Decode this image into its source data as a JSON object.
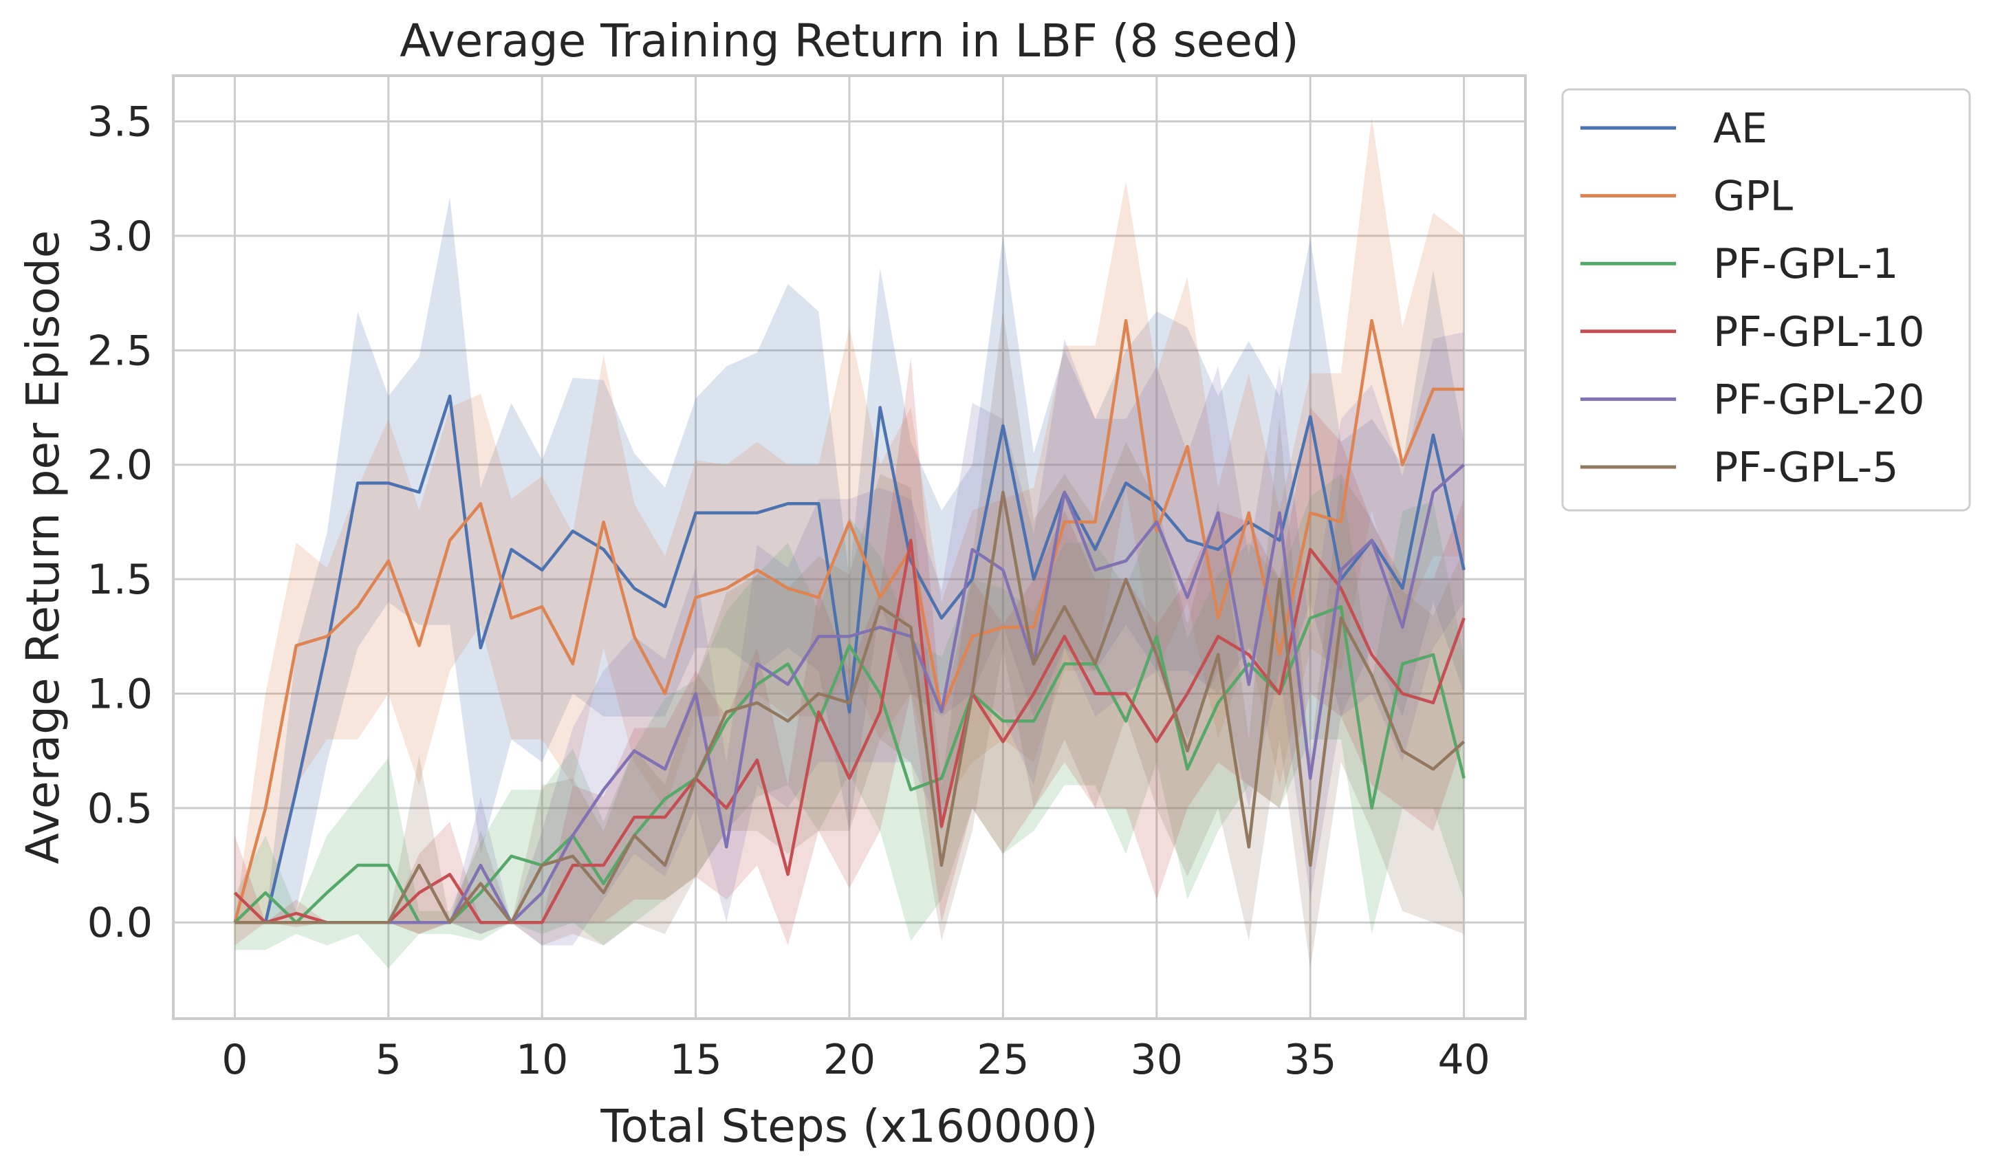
{
  "chart_data": {
    "type": "line",
    "title": "Average Training Return in LBF (8 seed)",
    "xlabel": "Total Steps (x160000)",
    "ylabel": "Average Return per Episode",
    "xlim": [
      -2,
      42
    ],
    "ylim": [
      -0.42,
      3.7
    ],
    "xticks": [
      "0",
      "5",
      "10",
      "15",
      "20",
      "25",
      "30",
      "35",
      "40"
    ],
    "yticks": [
      "0.0",
      "0.5",
      "1.0",
      "1.5",
      "2.0",
      "2.5",
      "3.0",
      "3.5"
    ],
    "grid": true,
    "legend_position": "outside-top-right",
    "x": [
      0,
      1,
      2,
      3,
      4,
      5,
      6,
      7,
      8,
      9,
      10,
      11,
      12,
      13,
      14,
      15,
      16,
      17,
      18,
      19,
      20,
      21,
      22,
      23,
      24,
      25,
      26,
      27,
      28,
      29,
      30,
      31,
      32,
      33,
      34,
      35,
      36,
      37,
      38,
      39,
      40
    ],
    "series": [
      {
        "name": "AE",
        "color": "#4c72b0",
        "values": [
          0.0,
          0.0,
          0.58,
          1.2,
          1.92,
          1.92,
          1.88,
          2.3,
          1.2,
          1.63,
          1.54,
          1.71,
          1.63,
          1.46,
          1.38,
          1.79,
          1.79,
          1.79,
          1.83,
          1.83,
          0.92,
          2.25,
          1.58,
          1.33,
          1.5,
          2.17,
          1.5,
          1.88,
          1.63,
          1.92,
          1.83,
          1.67,
          1.63,
          1.75,
          1.67,
          2.21,
          1.5,
          1.67,
          1.46,
          2.13,
          1.54
        ],
        "lower": [
          0.0,
          0.0,
          0.05,
          0.7,
          1.2,
          1.4,
          1.3,
          1.3,
          0.3,
          0.8,
          0.7,
          1.0,
          0.9,
          0.9,
          0.9,
          1.2,
          1.2,
          1.1,
          1.2,
          1.1,
          0.4,
          1.4,
          1.0,
          0.9,
          1.0,
          1.3,
          0.9,
          1.2,
          1.1,
          1.3,
          1.1,
          1.1,
          1.0,
          1.2,
          1.0,
          1.4,
          0.9,
          1.2,
          0.9,
          1.4,
          1.0
        ],
        "upper": [
          0.0,
          0.0,
          1.2,
          1.7,
          2.67,
          2.3,
          2.47,
          3.17,
          1.9,
          2.27,
          2.02,
          2.38,
          2.37,
          2.05,
          1.9,
          2.29,
          2.43,
          2.49,
          2.79,
          2.67,
          1.5,
          2.86,
          2.1,
          1.8,
          2.0,
          3.0,
          2.05,
          2.5,
          2.2,
          2.5,
          2.67,
          2.6,
          2.3,
          2.54,
          2.3,
          2.99,
          2.1,
          2.2,
          2.0,
          2.85,
          2.1
        ]
      },
      {
        "name": "GPL",
        "color": "#dd8452",
        "values": [
          0.0,
          0.5,
          1.21,
          1.25,
          1.38,
          1.58,
          1.21,
          1.67,
          1.83,
          1.33,
          1.38,
          1.13,
          1.75,
          1.25,
          1.0,
          1.42,
          1.46,
          1.54,
          1.46,
          1.42,
          1.75,
          1.42,
          1.63,
          0.92,
          1.25,
          1.29,
          1.29,
          1.75,
          1.75,
          2.63,
          1.71,
          2.08,
          1.33,
          1.79,
          1.17,
          1.79,
          1.75,
          2.63,
          2.0,
          2.33,
          2.33
        ],
        "lower": [
          0.0,
          0.0,
          0.6,
          0.8,
          0.8,
          1.0,
          0.6,
          1.1,
          1.3,
          0.8,
          0.8,
          0.6,
          1.2,
          0.7,
          0.5,
          0.9,
          0.9,
          1.0,
          0.9,
          0.9,
          1.1,
          0.8,
          1.0,
          0.5,
          0.7,
          0.8,
          0.7,
          1.1,
          1.1,
          1.9,
          1.1,
          1.4,
          0.8,
          1.2,
          0.6,
          1.2,
          1.1,
          1.8,
          1.3,
          1.6,
          1.6
        ],
        "upper": [
          0.0,
          1.0,
          1.66,
          1.55,
          1.9,
          2.2,
          1.8,
          2.25,
          2.31,
          1.85,
          1.95,
          1.7,
          2.48,
          1.83,
          1.6,
          2.02,
          2.0,
          2.1,
          2.0,
          2.0,
          2.6,
          2.0,
          2.25,
          1.4,
          1.8,
          1.85,
          1.9,
          2.52,
          2.52,
          3.24,
          2.4,
          2.82,
          1.9,
          2.4,
          1.8,
          2.4,
          2.4,
          3.52,
          2.6,
          3.1,
          3.0
        ]
      },
      {
        "name": "PF-GPL-1",
        "color": "#55a868",
        "values": [
          0.0,
          0.13,
          0.0,
          0.13,
          0.25,
          0.25,
          0.0,
          0.0,
          0.13,
          0.29,
          0.25,
          0.38,
          0.17,
          0.38,
          0.54,
          0.63,
          0.88,
          1.04,
          1.13,
          0.88,
          1.21,
          1.0,
          0.58,
          0.63,
          1.0,
          0.88,
          0.88,
          1.13,
          1.13,
          0.88,
          1.25,
          0.67,
          0.96,
          1.13,
          1.0,
          1.33,
          1.38,
          0.5,
          1.13,
          1.17,
          0.63
        ],
        "lower": [
          -0.12,
          -0.12,
          -0.05,
          -0.1,
          -0.05,
          -0.2,
          -0.05,
          -0.05,
          -0.08,
          0.0,
          -0.05,
          0.0,
          -0.1,
          0.0,
          0.1,
          0.2,
          0.4,
          0.55,
          0.6,
          0.4,
          0.65,
          0.4,
          -0.08,
          0.1,
          0.5,
          0.3,
          0.4,
          0.6,
          0.6,
          0.3,
          0.7,
          0.1,
          0.4,
          0.6,
          0.5,
          0.8,
          0.8,
          -0.05,
          0.5,
          0.5,
          0.1
        ],
        "upper": [
          0.12,
          0.38,
          0.05,
          0.38,
          0.55,
          0.72,
          0.05,
          0.05,
          0.35,
          0.58,
          0.58,
          0.76,
          0.44,
          0.76,
          0.98,
          1.06,
          1.36,
          1.52,
          1.66,
          1.36,
          1.77,
          1.6,
          1.24,
          1.16,
          1.5,
          1.46,
          1.36,
          1.66,
          1.66,
          1.46,
          1.8,
          1.24,
          1.52,
          1.66,
          1.5,
          1.86,
          1.96,
          1.05,
          1.8,
          1.84,
          1.16
        ]
      },
      {
        "name": "PF-GPL-10",
        "color": "#c44e52",
        "values": [
          0.13,
          0.0,
          0.04,
          0.0,
          0.0,
          0.0,
          0.13,
          0.21,
          0.0,
          0.0,
          0.0,
          0.25,
          0.25,
          0.46,
          0.46,
          0.63,
          0.5,
          0.71,
          0.21,
          0.92,
          0.63,
          0.92,
          1.67,
          0.42,
          1.0,
          0.79,
          1.0,
          1.25,
          1.0,
          1.0,
          0.79,
          1.0,
          1.25,
          1.17,
          1.0,
          1.63,
          1.46,
          1.17,
          1.0,
          0.96,
          1.33
        ],
        "lower": [
          -0.1,
          0.0,
          -0.02,
          0.0,
          0.0,
          0.0,
          -0.05,
          0.0,
          0.0,
          0.0,
          0.0,
          0.0,
          0.0,
          0.1,
          0.1,
          0.2,
          0.1,
          0.25,
          -0.1,
          0.4,
          0.15,
          0.4,
          1.0,
          0.0,
          0.5,
          0.3,
          0.5,
          0.7,
          0.5,
          0.5,
          0.1,
          0.5,
          0.7,
          0.6,
          0.5,
          1.0,
          0.9,
          0.6,
          0.5,
          0.4,
          0.8
        ],
        "upper": [
          0.38,
          0.0,
          0.1,
          0.0,
          0.0,
          0.0,
          0.3,
          0.44,
          0.0,
          0.0,
          0.0,
          0.6,
          0.55,
          0.85,
          0.85,
          1.1,
          0.9,
          1.2,
          0.6,
          1.45,
          1.1,
          1.45,
          2.47,
          0.9,
          1.5,
          1.3,
          1.5,
          1.8,
          1.5,
          1.5,
          1.3,
          1.5,
          1.8,
          1.75,
          1.5,
          2.25,
          2.1,
          1.75,
          1.5,
          1.5,
          1.85
        ]
      },
      {
        "name": "PF-GPL-20",
        "color": "#8172b3",
        "values": [
          0.0,
          0.0,
          0.0,
          0.0,
          0.0,
          0.0,
          0.0,
          0.0,
          0.25,
          0.0,
          0.13,
          0.38,
          0.58,
          0.75,
          0.67,
          1.0,
          0.33,
          1.13,
          1.04,
          1.25,
          1.25,
          1.29,
          1.25,
          0.92,
          1.63,
          1.54,
          1.13,
          1.88,
          1.54,
          1.58,
          1.75,
          1.42,
          1.79,
          1.04,
          1.79,
          0.63,
          1.54,
          1.67,
          1.29,
          1.88,
          2.0
        ],
        "lower": [
          0.0,
          0.0,
          0.0,
          0.0,
          0.0,
          0.0,
          0.0,
          0.0,
          -0.05,
          0.0,
          -0.1,
          -0.1,
          0.1,
          0.3,
          0.2,
          0.5,
          0.0,
          0.6,
          0.5,
          0.7,
          0.7,
          0.7,
          0.7,
          0.4,
          1.0,
          0.9,
          0.6,
          1.2,
          0.9,
          1.0,
          1.1,
          0.8,
          1.1,
          0.5,
          1.1,
          0.1,
          0.9,
          1.0,
          0.7,
          1.2,
          1.4
        ],
        "upper": [
          0.0,
          0.0,
          0.0,
          0.0,
          0.0,
          0.0,
          0.0,
          0.0,
          0.55,
          0.0,
          0.4,
          0.85,
          1.1,
          1.25,
          1.15,
          1.55,
          0.7,
          1.65,
          1.55,
          1.85,
          1.85,
          1.9,
          1.85,
          1.45,
          2.27,
          2.2,
          1.7,
          2.55,
          2.2,
          2.2,
          2.43,
          2.05,
          2.43,
          1.6,
          2.43,
          1.25,
          2.2,
          2.35,
          1.95,
          2.55,
          2.58
        ]
      },
      {
        "name": "PF-GPL-5",
        "color": "#937860",
        "values": [
          0.0,
          0.0,
          0.0,
          0.0,
          0.0,
          0.0,
          0.25,
          0.0,
          0.17,
          0.0,
          0.25,
          0.29,
          0.13,
          0.38,
          0.25,
          0.63,
          0.92,
          0.96,
          0.88,
          1.0,
          0.96,
          1.38,
          1.29,
          0.25,
          1.0,
          1.88,
          1.13,
          1.38,
          1.13,
          1.5,
          1.17,
          0.75,
          1.17,
          0.33,
          1.5,
          0.25,
          1.33,
          1.08,
          0.75,
          0.67,
          0.79
        ],
        "lower": [
          0.0,
          0.0,
          0.0,
          0.0,
          0.0,
          0.0,
          -0.05,
          0.0,
          -0.05,
          0.0,
          -0.1,
          -0.05,
          -0.1,
          0.0,
          -0.05,
          0.2,
          0.4,
          0.4,
          0.3,
          0.4,
          0.4,
          0.8,
          0.7,
          -0.08,
          0.4,
          1.2,
          0.5,
          0.8,
          0.5,
          0.9,
          0.5,
          0.2,
          0.5,
          -0.08,
          0.8,
          -0.2,
          0.7,
          0.4,
          0.05,
          0.0,
          -0.05
        ],
        "upper": [
          0.0,
          0.0,
          0.0,
          0.0,
          0.0,
          0.0,
          0.73,
          0.0,
          0.4,
          0.0,
          0.6,
          0.63,
          0.4,
          0.76,
          0.6,
          1.06,
          1.44,
          1.52,
          1.46,
          1.6,
          1.52,
          1.96,
          1.9,
          0.6,
          1.6,
          2.67,
          1.76,
          1.96,
          1.76,
          2.1,
          1.84,
          1.3,
          1.84,
          0.8,
          2.2,
          0.7,
          1.96,
          1.76,
          1.45,
          1.34,
          1.63
        ]
      }
    ]
  }
}
